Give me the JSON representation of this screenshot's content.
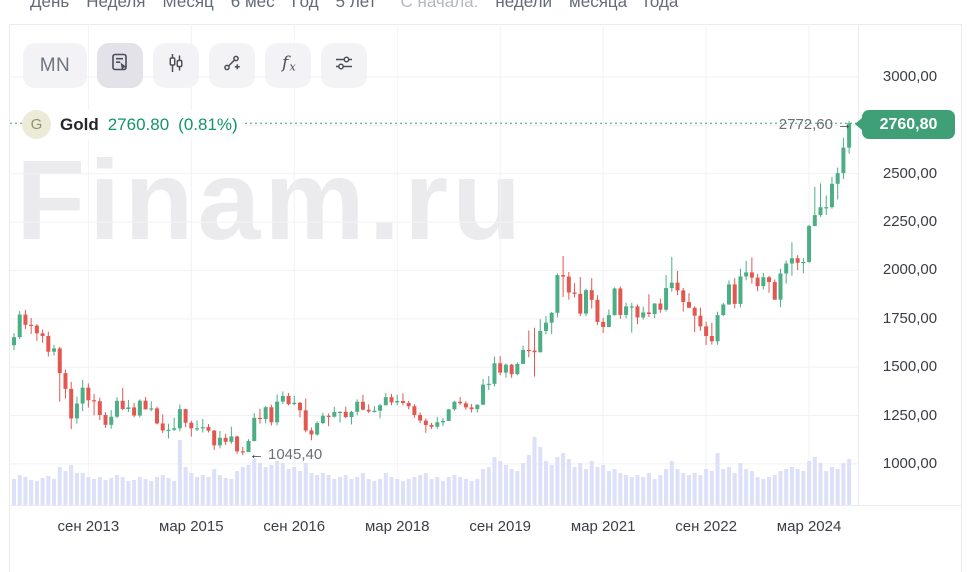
{
  "period_bar": {
    "items": [
      {
        "name": "day",
        "label": "День"
      },
      {
        "name": "week",
        "label": "Неделя"
      },
      {
        "name": "month",
        "label": "Месяц"
      },
      {
        "name": "6m",
        "label": "6 мес"
      },
      {
        "name": "year",
        "label": "Год"
      },
      {
        "name": "5y",
        "label": "5 лет"
      },
      {
        "name": "since-label",
        "label": "С начала:",
        "muted": true
      },
      {
        "name": "since-week",
        "label": "недели"
      },
      {
        "name": "since-month",
        "label": "месяца"
      },
      {
        "name": "since-year",
        "label": "года"
      }
    ]
  },
  "toolbar": {
    "timeframe_label": "MN"
  },
  "legend": {
    "symbol_letter": "G",
    "name": "Gold",
    "price_text": "2760.80",
    "change_text": "(0.81%)"
  },
  "watermark": "Finam.ru",
  "annotations": {
    "high": {
      "text": "2772,60",
      "arrow": "→"
    },
    "low": {
      "text": "1045,40",
      "arrow": "←"
    }
  },
  "price_axis": {
    "ticks": [
      {
        "label": "3000,00",
        "value": 3000
      },
      {
        "label": "2500,00",
        "value": 2500
      },
      {
        "label": "2250,00",
        "value": 2250
      },
      {
        "label": "2000,00",
        "value": 2000
      },
      {
        "label": "1750,00",
        "value": 1750
      },
      {
        "label": "1500,00",
        "value": 1500
      },
      {
        "label": "1250,00",
        "value": 1250
      },
      {
        "label": "1000,00",
        "value": 1000
      }
    ],
    "last_price_badge": {
      "label": "2760,80",
      "value": 2760.8
    }
  },
  "time_axis": {
    "ticks": [
      {
        "label": "сен 2013",
        "month_index": 13
      },
      {
        "label": "мар 2015",
        "month_index": 31
      },
      {
        "label": "сен 2016",
        "month_index": 49
      },
      {
        "label": "мар 2018",
        "month_index": 67
      },
      {
        "label": "сен 2019",
        "month_index": 85
      },
      {
        "label": "мар 2021",
        "month_index": 103
      },
      {
        "label": "сен 2022",
        "month_index": 121
      },
      {
        "label": "мар 2024",
        "month_index": 139
      }
    ]
  },
  "colors": {
    "candle_up": "#4cae85",
    "candle_down": "#e2574f",
    "accent_green": "#3fa078",
    "price_text_green": "#13946a",
    "volume_bar": "#dce0f8",
    "grid_line": "#f2f2f5",
    "frame_border": "#ebebee",
    "watermark_gray": "#ebebed",
    "axis_text": "#3a3e46",
    "topbar_text": "#636a78",
    "muted_text": "#b4b8c2"
  },
  "chart_data": {
    "type": "candlestick",
    "symbol": "Gold",
    "timeframe": "MN",
    "last_price": 2760.8,
    "change_pct": 0.81,
    "high_marker": 2772.6,
    "low_marker": 1045.4,
    "ylim": [
      950,
      3050
    ],
    "grid": true,
    "months": [
      [
        "2012-08",
        1614,
        1676,
        1588,
        1655
      ],
      [
        "2012-09",
        1655,
        1790,
        1646,
        1772
      ],
      [
        "2012-10",
        1772,
        1796,
        1698,
        1719
      ],
      [
        "2012-11",
        1719,
        1754,
        1672,
        1715
      ],
      [
        "2012-12",
        1715,
        1723,
        1636,
        1675
      ],
      [
        "2013-01",
        1675,
        1695,
        1626,
        1661
      ],
      [
        "2013-02",
        1661,
        1684,
        1555,
        1580
      ],
      [
        "2013-03",
        1580,
        1616,
        1560,
        1597
      ],
      [
        "2013-04",
        1597,
        1605,
        1322,
        1469
      ],
      [
        "2013-05",
        1469,
        1488,
        1338,
        1388
      ],
      [
        "2013-06",
        1388,
        1424,
        1180,
        1235
      ],
      [
        "2013-07",
        1235,
        1348,
        1208,
        1312
      ],
      [
        "2013-08",
        1312,
        1434,
        1272,
        1394
      ],
      [
        "2013-09",
        1394,
        1416,
        1291,
        1329
      ],
      [
        "2013-10",
        1329,
        1361,
        1251,
        1324
      ],
      [
        "2013-11",
        1324,
        1342,
        1227,
        1253
      ],
      [
        "2013-12",
        1253,
        1267,
        1186,
        1202
      ],
      [
        "2014-01",
        1202,
        1278,
        1182,
        1244
      ],
      [
        "2014-02",
        1244,
        1345,
        1237,
        1326
      ],
      [
        "2014-03",
        1326,
        1392,
        1277,
        1284
      ],
      [
        "2014-04",
        1284,
        1331,
        1268,
        1292
      ],
      [
        "2014-05",
        1292,
        1315,
        1241,
        1250
      ],
      [
        "2014-06",
        1250,
        1334,
        1240,
        1327
      ],
      [
        "2014-07",
        1327,
        1346,
        1281,
        1282
      ],
      [
        "2014-08",
        1282,
        1324,
        1273,
        1287
      ],
      [
        "2014-09",
        1287,
        1296,
        1204,
        1209
      ],
      [
        "2014-10",
        1209,
        1256,
        1160,
        1173
      ],
      [
        "2014-11",
        1173,
        1208,
        1131,
        1176
      ],
      [
        "2014-12",
        1176,
        1239,
        1170,
        1184
      ],
      [
        "2015-01",
        1184,
        1307,
        1168,
        1283
      ],
      [
        "2015-02",
        1283,
        1285,
        1190,
        1213
      ],
      [
        "2015-03",
        1213,
        1223,
        1141,
        1184
      ],
      [
        "2015-04",
        1184,
        1225,
        1170,
        1184
      ],
      [
        "2015-05",
        1184,
        1232,
        1162,
        1190
      ],
      [
        "2015-06",
        1190,
        1206,
        1162,
        1172
      ],
      [
        "2015-07",
        1172,
        1175,
        1072,
        1096
      ],
      [
        "2015-08",
        1096,
        1170,
        1080,
        1135
      ],
      [
        "2015-09",
        1135,
        1156,
        1098,
        1114
      ],
      [
        "2015-10",
        1114,
        1192,
        1104,
        1142
      ],
      [
        "2015-11",
        1142,
        1146,
        1052,
        1065
      ],
      [
        "2015-12",
        1065,
        1088,
        1045.4,
        1061
      ],
      [
        "2016-01",
        1061,
        1128,
        1061,
        1118
      ],
      [
        "2016-02",
        1118,
        1263,
        1117,
        1238
      ],
      [
        "2016-03",
        1238,
        1285,
        1208,
        1232
      ],
      [
        "2016-04",
        1232,
        1299,
        1209,
        1293
      ],
      [
        "2016-05",
        1293,
        1306,
        1199,
        1215
      ],
      [
        "2016-06",
        1215,
        1359,
        1200,
        1322
      ],
      [
        "2016-07",
        1322,
        1375,
        1310,
        1351
      ],
      [
        "2016-08",
        1351,
        1367,
        1302,
        1309
      ],
      [
        "2016-09",
        1309,
        1353,
        1302,
        1316
      ],
      [
        "2016-10",
        1316,
        1320,
        1241,
        1277
      ],
      [
        "2016-11",
        1277,
        1338,
        1163,
        1173
      ],
      [
        "2016-12",
        1173,
        1188,
        1122,
        1152
      ],
      [
        "2017-01",
        1152,
        1220,
        1146,
        1211
      ],
      [
        "2017-02",
        1211,
        1264,
        1205,
        1249
      ],
      [
        "2017-03",
        1249,
        1261,
        1195,
        1244
      ],
      [
        "2017-04",
        1244,
        1295,
        1240,
        1268
      ],
      [
        "2017-05",
        1268,
        1273,
        1214,
        1269
      ],
      [
        "2017-06",
        1269,
        1296,
        1236,
        1242
      ],
      [
        "2017-07",
        1242,
        1274,
        1204,
        1269
      ],
      [
        "2017-08",
        1269,
        1334,
        1251,
        1321
      ],
      [
        "2017-09",
        1321,
        1357,
        1277,
        1280
      ],
      [
        "2017-10",
        1280,
        1308,
        1263,
        1271
      ],
      [
        "2017-11",
        1271,
        1299,
        1265,
        1275
      ],
      [
        "2017-12",
        1275,
        1310,
        1236,
        1303
      ],
      [
        "2018-01",
        1303,
        1366,
        1302,
        1345
      ],
      [
        "2018-02",
        1345,
        1362,
        1303,
        1318
      ],
      [
        "2018-03",
        1318,
        1357,
        1303,
        1325
      ],
      [
        "2018-04",
        1325,
        1365,
        1302,
        1315
      ],
      [
        "2018-05",
        1315,
        1326,
        1282,
        1298
      ],
      [
        "2018-06",
        1298,
        1309,
        1238,
        1253
      ],
      [
        "2018-07",
        1253,
        1266,
        1211,
        1224
      ],
      [
        "2018-08",
        1224,
        1235,
        1160,
        1201
      ],
      [
        "2018-09",
        1201,
        1212,
        1180,
        1192
      ],
      [
        "2018-10",
        1192,
        1243,
        1180,
        1215
      ],
      [
        "2018-11",
        1215,
        1237,
        1196,
        1222
      ],
      [
        "2018-12",
        1222,
        1284,
        1221,
        1282
      ],
      [
        "2019-01",
        1282,
        1326,
        1276,
        1321
      ],
      [
        "2019-02",
        1321,
        1346,
        1305,
        1313
      ],
      [
        "2019-03",
        1313,
        1324,
        1280,
        1292
      ],
      [
        "2019-04",
        1292,
        1310,
        1266,
        1283
      ],
      [
        "2019-05",
        1283,
        1308,
        1265,
        1306
      ],
      [
        "2019-06",
        1306,
        1439,
        1305,
        1410
      ],
      [
        "2019-07",
        1410,
        1454,
        1382,
        1414
      ],
      [
        "2019-08",
        1414,
        1555,
        1400,
        1520
      ],
      [
        "2019-09",
        1520,
        1557,
        1458,
        1472
      ],
      [
        "2019-10",
        1472,
        1520,
        1446,
        1513
      ],
      [
        "2019-11",
        1513,
        1517,
        1445,
        1464
      ],
      [
        "2019-12",
        1464,
        1525,
        1458,
        1517
      ],
      [
        "2020-01",
        1517,
        1611,
        1516,
        1589
      ],
      [
        "2020-02",
        1589,
        1690,
        1551,
        1586
      ],
      [
        "2020-03",
        1586,
        1704,
        1451,
        1577
      ],
      [
        "2020-04",
        1577,
        1748,
        1576,
        1687
      ],
      [
        "2020-05",
        1687,
        1765,
        1670,
        1730
      ],
      [
        "2020-06",
        1730,
        1786,
        1671,
        1781
      ],
      [
        "2020-07",
        1781,
        1984,
        1757,
        1976
      ],
      [
        "2020-08",
        1976,
        2075,
        1863,
        1968
      ],
      [
        "2020-09",
        1968,
        1992,
        1849,
        1886
      ],
      [
        "2020-10",
        1886,
        1934,
        1860,
        1879
      ],
      [
        "2020-11",
        1879,
        1966,
        1765,
        1777
      ],
      [
        "2020-12",
        1777,
        1906,
        1764,
        1898
      ],
      [
        "2021-01",
        1898,
        1960,
        1803,
        1848
      ],
      [
        "2021-02",
        1848,
        1872,
        1717,
        1734
      ],
      [
        "2021-03",
        1734,
        1755,
        1677,
        1708
      ],
      [
        "2021-04",
        1708,
        1798,
        1706,
        1769
      ],
      [
        "2021-05",
        1769,
        1913,
        1766,
        1907
      ],
      [
        "2021-06",
        1907,
        1917,
        1750,
        1770
      ],
      [
        "2021-07",
        1770,
        1834,
        1752,
        1814
      ],
      [
        "2021-08",
        1814,
        1832,
        1678,
        1814
      ],
      [
        "2021-09",
        1814,
        1824,
        1722,
        1757
      ],
      [
        "2021-10",
        1757,
        1813,
        1746,
        1783
      ],
      [
        "2021-11",
        1783,
        1877,
        1759,
        1775
      ],
      [
        "2021-12",
        1775,
        1831,
        1753,
        1829
      ],
      [
        "2022-01",
        1829,
        1854,
        1781,
        1797
      ],
      [
        "2022-02",
        1797,
        1976,
        1788,
        1909
      ],
      [
        "2022-03",
        1909,
        2070,
        1890,
        1937
      ],
      [
        "2022-04",
        1937,
        1998,
        1872,
        1897
      ],
      [
        "2022-05",
        1897,
        1910,
        1787,
        1837
      ],
      [
        "2022-06",
        1837,
        1882,
        1805,
        1807
      ],
      [
        "2022-07",
        1807,
        1815,
        1681,
        1766
      ],
      [
        "2022-08",
        1766,
        1808,
        1688,
        1711
      ],
      [
        "2022-09",
        1711,
        1735,
        1615,
        1661
      ],
      [
        "2022-10",
        1661,
        1730,
        1617,
        1634
      ],
      [
        "2022-11",
        1634,
        1787,
        1616,
        1769
      ],
      [
        "2022-12",
        1769,
        1833,
        1765,
        1824
      ],
      [
        "2023-01",
        1824,
        1949,
        1823,
        1928
      ],
      [
        "2023-02",
        1928,
        1960,
        1804,
        1827
      ],
      [
        "2023-03",
        1827,
        2010,
        1809,
        1969
      ],
      [
        "2023-04",
        1969,
        2049,
        1949,
        1990
      ],
      [
        "2023-05",
        1990,
        2067,
        1932,
        1963
      ],
      [
        "2023-06",
        1963,
        1983,
        1893,
        1919
      ],
      [
        "2023-07",
        1919,
        1987,
        1902,
        1965
      ],
      [
        "2023-08",
        1965,
        1972,
        1885,
        1940
      ],
      [
        "2023-09",
        1940,
        1953,
        1848,
        1849
      ],
      [
        "2023-10",
        1849,
        2009,
        1810,
        1984
      ],
      [
        "2023-11",
        1984,
        2052,
        1932,
        2036
      ],
      [
        "2023-12",
        2036,
        2146,
        1973,
        2063
      ],
      [
        "2024-01",
        2063,
        2079,
        2002,
        2040
      ],
      [
        "2024-02",
        2040,
        2065,
        1985,
        2044
      ],
      [
        "2024-03",
        2044,
        2236,
        2039,
        2230
      ],
      [
        "2024-04",
        2230,
        2432,
        2229,
        2286
      ],
      [
        "2024-05",
        2286,
        2450,
        2277,
        2327
      ],
      [
        "2024-06",
        2327,
        2388,
        2287,
        2327
      ],
      [
        "2024-07",
        2327,
        2483,
        2319,
        2448
      ],
      [
        "2024-08",
        2448,
        2532,
        2367,
        2503
      ],
      [
        "2024-09",
        2503,
        2685,
        2472,
        2635
      ],
      [
        "2024-10",
        2635,
        2772.6,
        2604,
        2760.8
      ]
    ],
    "volumes": [
      26,
      30,
      28,
      25,
      24,
      27,
      29,
      26,
      38,
      34,
      40,
      32,
      32,
      28,
      26,
      28,
      25,
      27,
      30,
      28,
      24,
      25,
      28,
      26,
      24,
      28,
      30,
      27,
      24,
      65,
      38,
      32,
      28,
      30,
      28,
      36,
      30,
      27,
      26,
      34,
      38,
      40,
      46,
      42,
      38,
      40,
      44,
      42,
      36,
      38,
      34,
      42,
      32,
      30,
      32,
      30,
      26,
      28,
      30,
      26,
      28,
      32,
      26,
      24,
      26,
      32,
      28,
      26,
      24,
      26,
      28,
      30,
      32,
      26,
      28,
      24,
      28,
      30,
      28,
      26,
      24,
      26,
      36,
      38,
      48,
      44,
      40,
      36,
      34,
      42,
      50,
      68,
      58,
      44,
      40,
      48,
      52,
      46,
      38,
      42,
      36,
      44,
      38,
      40,
      34,
      36,
      32,
      30,
      28,
      30,
      28,
      32,
      26,
      30,
      36,
      44,
      36,
      32,
      30,
      32,
      30,
      36,
      34,
      52,
      36,
      38,
      32,
      42,
      36,
      34,
      28,
      26,
      28,
      30,
      34,
      36,
      38,
      36,
      34,
      44,
      48,
      42,
      34,
      38,
      36,
      42,
      46
    ]
  }
}
